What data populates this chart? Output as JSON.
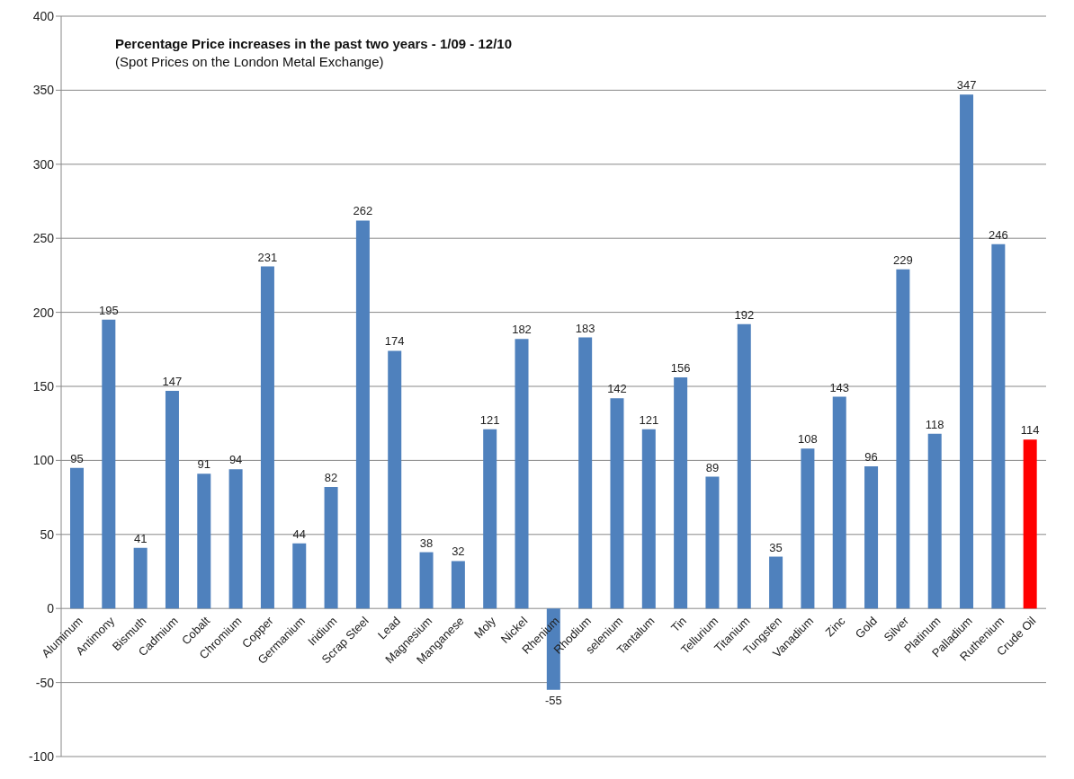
{
  "chart_data": {
    "type": "bar",
    "title": "Percentage Price increases in the past two years - 1/09 - 12/10",
    "subtitle": "(Spot Prices on the London Metal Exchange)",
    "categories": [
      "Aluminum",
      "Antimony",
      "Bismuth",
      "Cadmium",
      "Cobalt",
      "Chromium",
      "Copper",
      "Germanium",
      "Iridium",
      "Scrap Steel",
      "Lead",
      "Magnesium",
      "Manganese",
      "Moly",
      "Nickel",
      "Rhenium",
      "Rhodium",
      "selenium",
      "Tantalum",
      "Tin",
      "Tellurium",
      "Titanium",
      "Tungsten",
      "Vanadium",
      "Zinc",
      "Gold",
      "Silver",
      "Platinum",
      "Palladium",
      "Ruthenium",
      "Crude Oil"
    ],
    "values": [
      95,
      195,
      41,
      147,
      91,
      94,
      231,
      44,
      82,
      262,
      174,
      38,
      32,
      121,
      182,
      -55,
      183,
      142,
      121,
      156,
      89,
      192,
      35,
      108,
      143,
      96,
      229,
      118,
      347,
      246,
      114
    ],
    "colors": [
      "#4f81bd",
      "#4f81bd",
      "#4f81bd",
      "#4f81bd",
      "#4f81bd",
      "#4f81bd",
      "#4f81bd",
      "#4f81bd",
      "#4f81bd",
      "#4f81bd",
      "#4f81bd",
      "#4f81bd",
      "#4f81bd",
      "#4f81bd",
      "#4f81bd",
      "#4f81bd",
      "#4f81bd",
      "#4f81bd",
      "#4f81bd",
      "#4f81bd",
      "#4f81bd",
      "#4f81bd",
      "#4f81bd",
      "#4f81bd",
      "#4f81bd",
      "#4f81bd",
      "#4f81bd",
      "#4f81bd",
      "#4f81bd",
      "#4f81bd",
      "#ff0000"
    ],
    "ylim": [
      -100,
      400
    ],
    "yticks": [
      -100,
      -50,
      0,
      50,
      100,
      150,
      200,
      250,
      300,
      350,
      400
    ],
    "grid": "y",
    "data_labels": true,
    "legend": false
  }
}
